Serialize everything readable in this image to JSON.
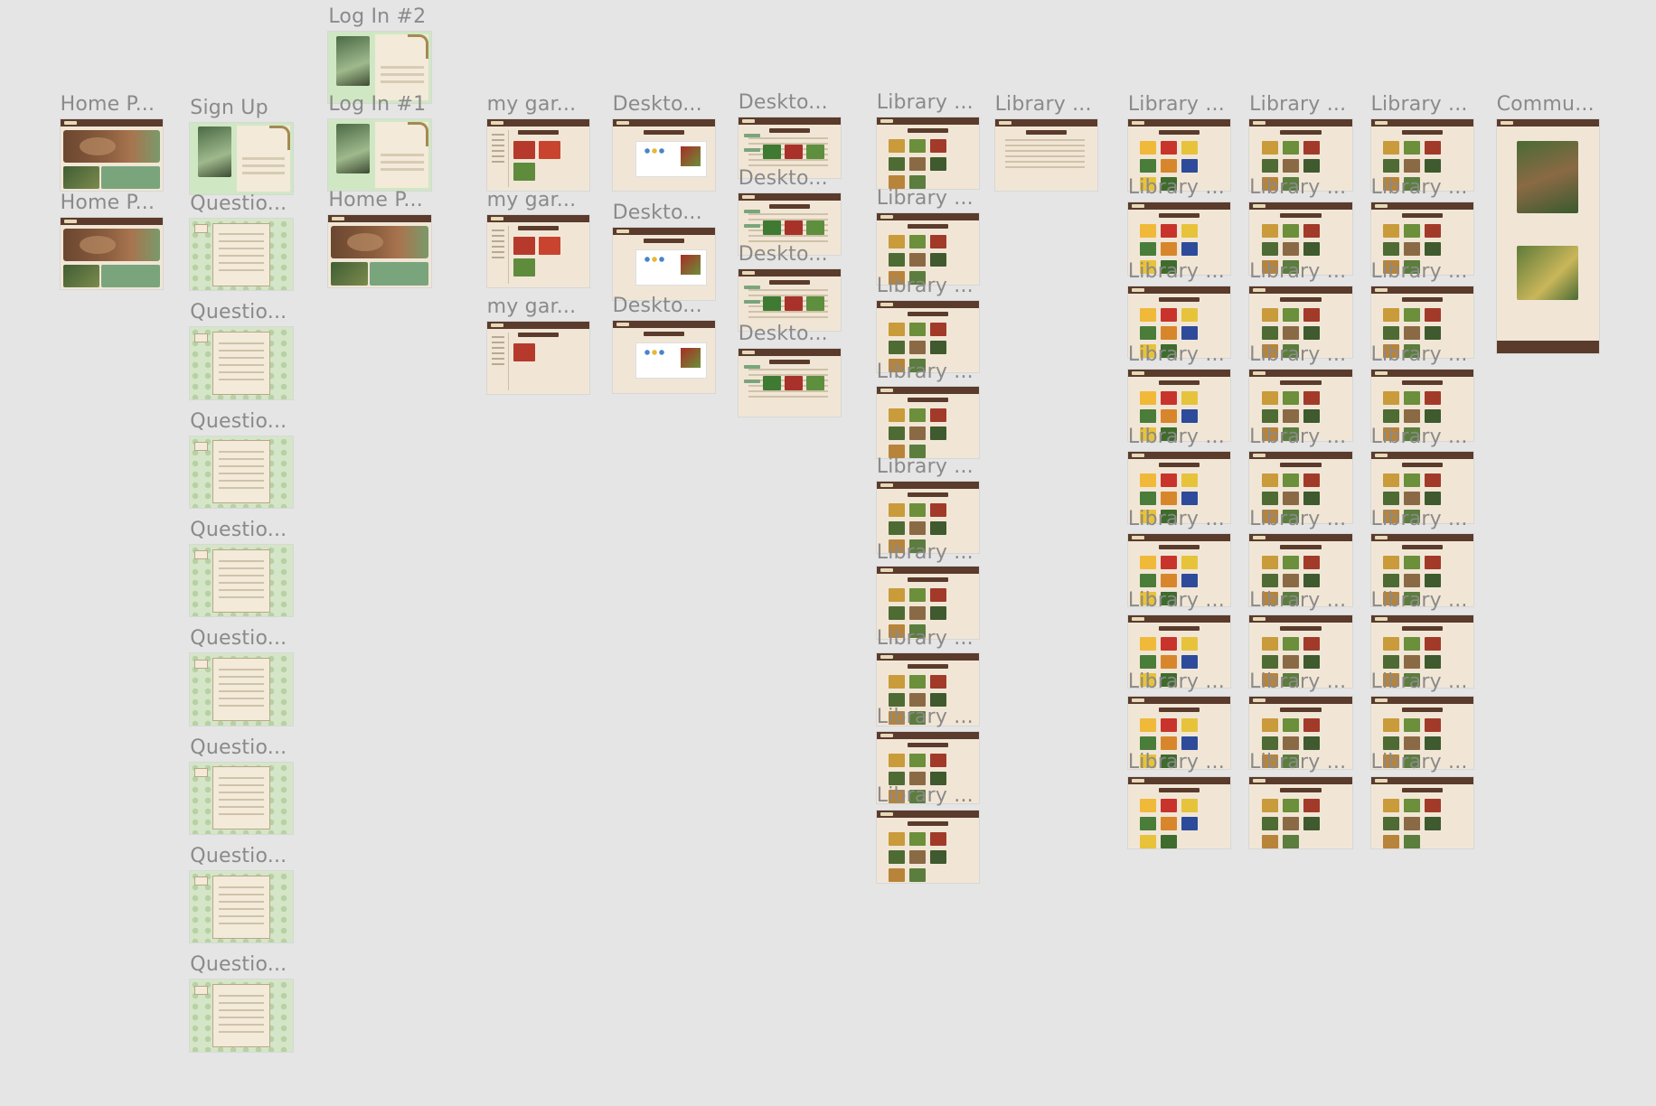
{
  "canvas": {
    "background": "#e5e5e5"
  },
  "theme": {
    "frame_bg": "#f1e6d6",
    "topbar": "#5a3b2c",
    "accent_green": "#7aa57c",
    "label_gray": "#8a8a8a"
  },
  "frames": [
    {
      "id": "home-1",
      "label": "Home P...",
      "kind": "home"
    },
    {
      "id": "home-2",
      "label": "Home P...",
      "kind": "home"
    },
    {
      "id": "signup",
      "label": "Sign Up",
      "kind": "auth"
    },
    {
      "id": "q1",
      "label": "Questio...",
      "kind": "quest"
    },
    {
      "id": "q2",
      "label": "Questio...",
      "kind": "quest"
    },
    {
      "id": "q3",
      "label": "Questio...",
      "kind": "quest"
    },
    {
      "id": "q4",
      "label": "Questio...",
      "kind": "quest"
    },
    {
      "id": "q5",
      "label": "Questio...",
      "kind": "quest"
    },
    {
      "id": "q6",
      "label": "Questio...",
      "kind": "quest"
    },
    {
      "id": "q7",
      "label": "Questio...",
      "kind": "quest"
    },
    {
      "id": "q8",
      "label": "Questio...",
      "kind": "quest"
    },
    {
      "id": "login2",
      "label": "Log In #2",
      "kind": "auth"
    },
    {
      "id": "login1",
      "label": "Log In #1",
      "kind": "auth"
    },
    {
      "id": "home-3",
      "label": "Home P...",
      "kind": "home"
    },
    {
      "id": "garden-1",
      "label": "my gar...",
      "kind": "garden"
    },
    {
      "id": "garden-2",
      "label": "my gar...",
      "kind": "garden"
    },
    {
      "id": "garden-3",
      "label": "my gar...",
      "kind": "garden"
    },
    {
      "id": "desk-a1",
      "label": "Deskto...",
      "kind": "desk-plant"
    },
    {
      "id": "desk-a2",
      "label": "Deskto...",
      "kind": "desk-plant"
    },
    {
      "id": "desk-a3",
      "label": "Deskto...",
      "kind": "desk-plant"
    },
    {
      "id": "desk-b1",
      "label": "Deskto...",
      "kind": "desk-account"
    },
    {
      "id": "desk-b2",
      "label": "Deskto...",
      "kind": "desk-account"
    },
    {
      "id": "desk-b3",
      "label": "Deskto...",
      "kind": "desk-account"
    },
    {
      "id": "desk-b4",
      "label": "Deskto...",
      "kind": "desk-account"
    },
    {
      "id": "lib-c1-1",
      "label": "Library ...",
      "kind": "library"
    },
    {
      "id": "lib-c1-2",
      "label": "Library ...",
      "kind": "library"
    },
    {
      "id": "lib-c1-3",
      "label": "Library ...",
      "kind": "library"
    },
    {
      "id": "lib-c1-4",
      "label": "Library ...",
      "kind": "library"
    },
    {
      "id": "lib-c1-5",
      "label": "Library ...",
      "kind": "library"
    },
    {
      "id": "lib-c1-6",
      "label": "Library ...",
      "kind": "library"
    },
    {
      "id": "lib-c1-7",
      "label": "Library ...",
      "kind": "library"
    },
    {
      "id": "lib-c1-8",
      "label": "Library ...",
      "kind": "library"
    },
    {
      "id": "lib-c1-9",
      "label": "Library ...",
      "kind": "library"
    },
    {
      "id": "lib-text",
      "label": "Library ...",
      "kind": "library-text"
    },
    {
      "id": "commu",
      "label": "Commu...",
      "kind": "community"
    }
  ],
  "labels": {
    "home": "Home P...",
    "signup": "Sign Up",
    "question": "Questio...",
    "login2": "Log In #2",
    "login1": "Log In #1",
    "garden": "my gar...",
    "desktop": "Deskto...",
    "library": "Library ...",
    "community": "Commu..."
  },
  "icons": {
    "frame_thumbnail": "frame-thumbnail-icon"
  }
}
